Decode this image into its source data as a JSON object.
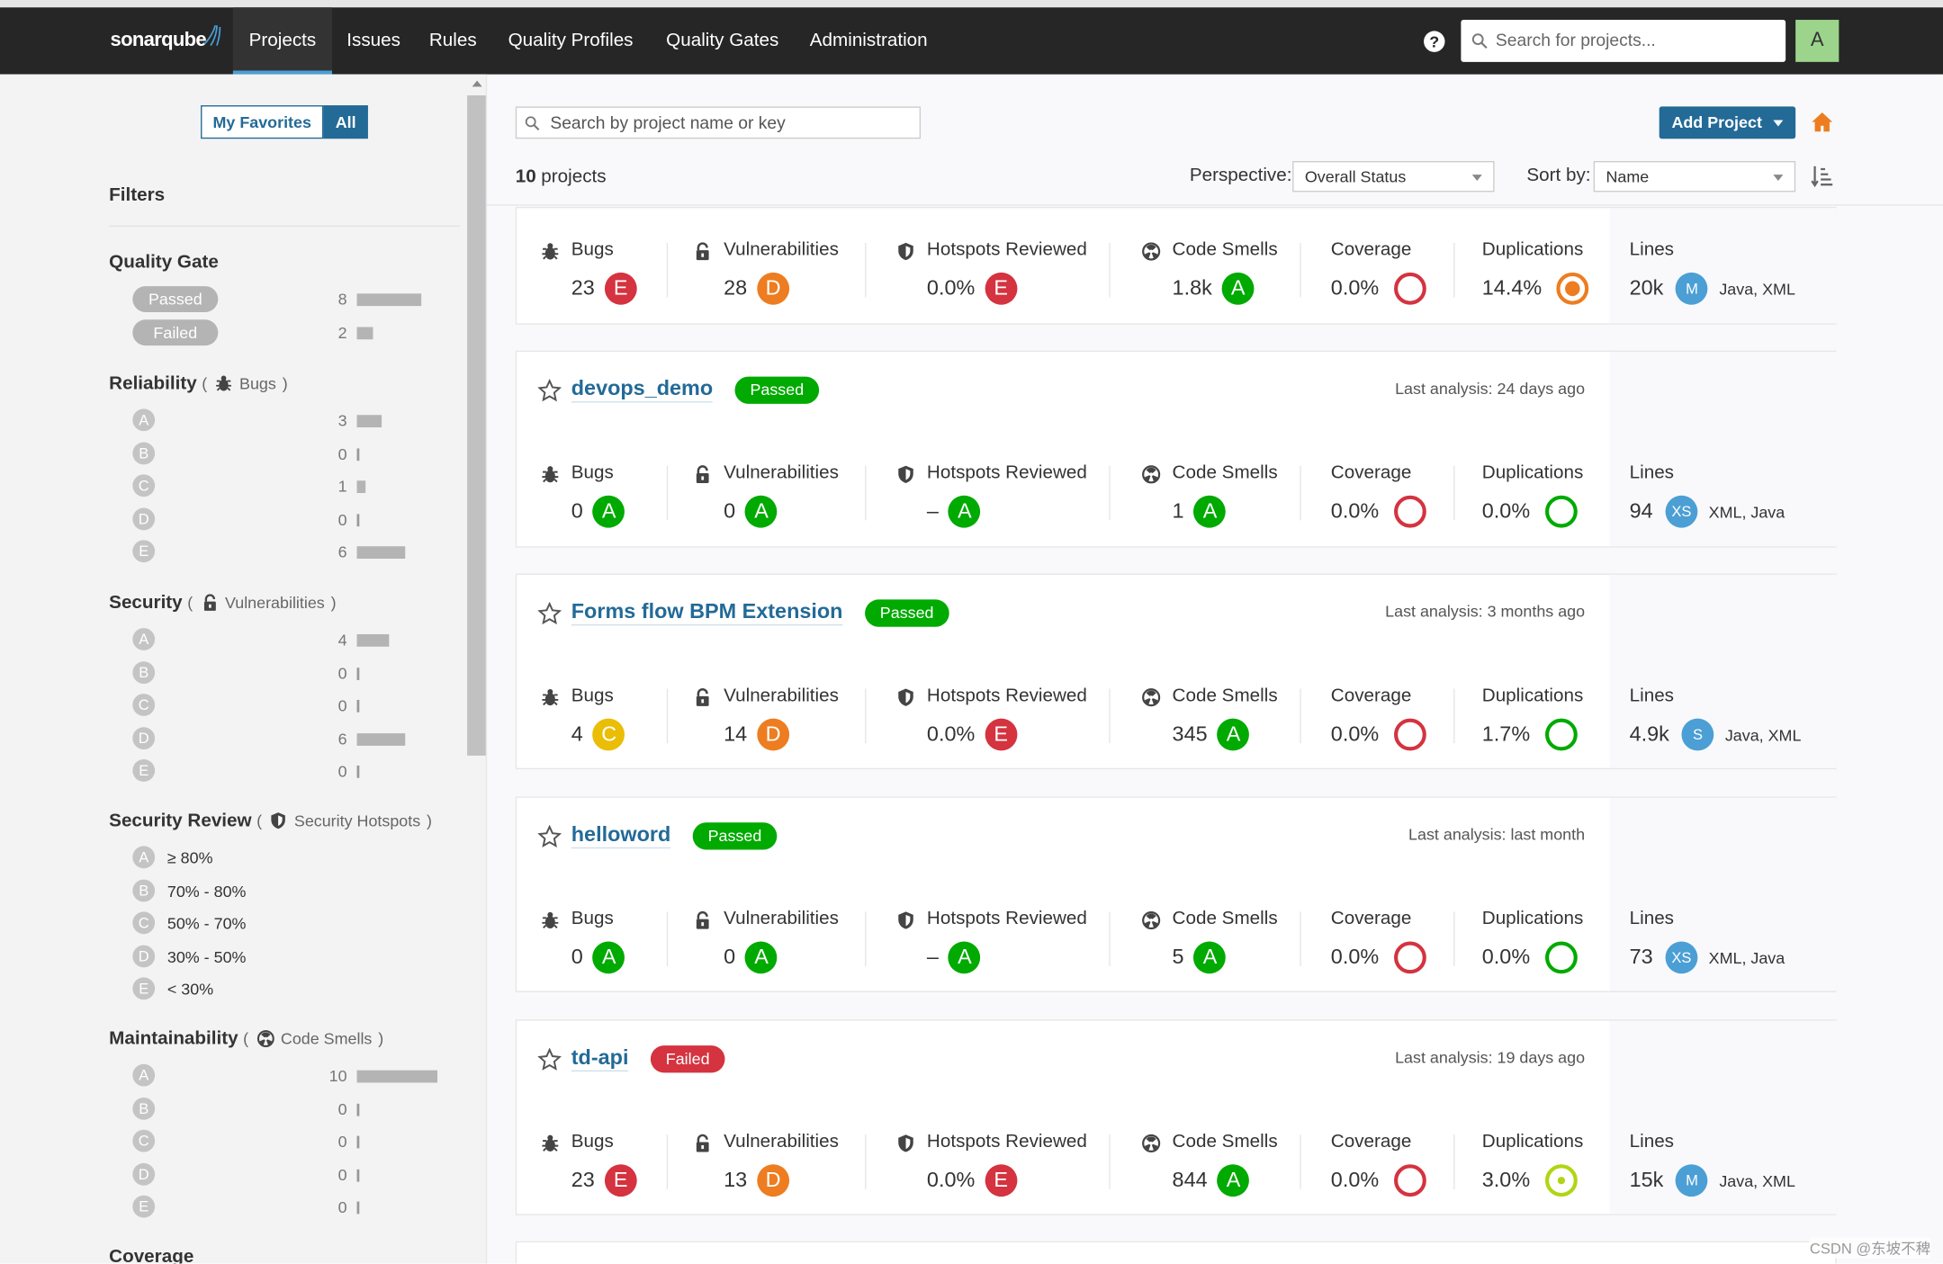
{
  "nav": {
    "logo": "sonarqube",
    "items": [
      "Projects",
      "Issues",
      "Rules",
      "Quality Profiles",
      "Quality Gates",
      "Administration"
    ],
    "help": "?",
    "search": "Search for projects...",
    "avatar": "A"
  },
  "sidebar": {
    "toggle": [
      "My Favorites",
      "All"
    ],
    "title": "Filters",
    "brackets": [
      "(",
      ")"
    ],
    "quality_gate": {
      "title": "Quality Gate",
      "options": [
        {
          "label": "Passed",
          "count": 8
        },
        {
          "label": "Failed",
          "count": 2
        }
      ]
    },
    "groups": [
      {
        "title": "Reliability",
        "qualifier": "Bugs",
        "icon": "bug",
        "options": [
          {
            "label": "A",
            "count": 3
          },
          {
            "label": "B",
            "count": 0
          },
          {
            "label": "C",
            "count": 1
          },
          {
            "label": "D",
            "count": 0
          },
          {
            "label": "E",
            "count": 6
          }
        ]
      },
      {
        "title": "Security",
        "qualifier": "Vulnerabilities",
        "icon": "lock",
        "options": [
          {
            "label": "A",
            "count": 4
          },
          {
            "label": "B",
            "count": 0
          },
          {
            "label": "C",
            "count": 0
          },
          {
            "label": "D",
            "count": 6
          },
          {
            "label": "E",
            "count": 0
          }
        ]
      },
      {
        "title": "Security Review",
        "qualifier": "Security Hotspots",
        "icon": "shield",
        "options": [
          {
            "label": "A",
            "text": "≥ 80%"
          },
          {
            "label": "B",
            "text": "70% - 80%"
          },
          {
            "label": "C",
            "text": "50% - 70%"
          },
          {
            "label": "D",
            "text": "30% - 50%"
          },
          {
            "label": "E",
            "text": "< 30%"
          }
        ]
      },
      {
        "title": "Maintainability",
        "qualifier": "Code Smells",
        "icon": "smell",
        "options": [
          {
            "label": "A",
            "count": 10
          },
          {
            "label": "B",
            "count": 0
          },
          {
            "label": "C",
            "count": 0
          },
          {
            "label": "D",
            "count": 0
          },
          {
            "label": "E",
            "count": 0
          }
        ]
      }
    ],
    "coverage_title": "Coverage"
  },
  "main": {
    "search": "Search by project name or key",
    "add_project": "Add Project",
    "count": "10",
    "count_suffix": "projects",
    "perspective_label": "Perspective:",
    "perspective": "Overall Status",
    "sort_label": "Sort by:",
    "sort": "Name",
    "metric_labels": [
      "Bugs",
      "Vulnerabilities",
      "Hotspots Reviewed",
      "Code Smells",
      "Coverage",
      "Duplications",
      "Lines"
    ],
    "projects": [
      {
        "metrics": [
          {
            "value": "23",
            "rating": "E"
          },
          {
            "value": "28",
            "rating": "D"
          },
          {
            "value": "0.0%",
            "rating": "E"
          },
          {
            "value": "1.8k",
            "rating": "A"
          },
          {
            "value": "0.0%"
          },
          {
            "value": "14.4%",
            "ring": "#ed7d20"
          },
          {
            "value": "20k",
            "size": "M",
            "languages": "Java, XML"
          }
        ]
      },
      {
        "name": "devops_demo",
        "gate": "Passed",
        "analysis": "Last analysis: 24 days ago",
        "metrics": [
          {
            "value": "0",
            "rating": "A"
          },
          {
            "value": "0",
            "rating": "A"
          },
          {
            "value": "–",
            "rating": "A"
          },
          {
            "value": "1",
            "rating": "A"
          },
          {
            "value": "0.0%"
          },
          {
            "value": "0.0%",
            "ring": "#00aa00"
          },
          {
            "value": "94",
            "size": "XS",
            "languages": "XML, Java"
          }
        ]
      },
      {
        "name": "Forms flow BPM Extension",
        "gate": "Passed",
        "analysis": "Last analysis: 3 months ago",
        "metrics": [
          {
            "value": "4",
            "rating": "C"
          },
          {
            "value": "14",
            "rating": "D"
          },
          {
            "value": "0.0%",
            "rating": "E"
          },
          {
            "value": "345",
            "rating": "A"
          },
          {
            "value": "0.0%"
          },
          {
            "value": "1.7%",
            "ring": "#00aa00"
          },
          {
            "value": "4.9k",
            "size": "S",
            "languages": "Java, XML"
          }
        ]
      },
      {
        "name": "helloword",
        "gate": "Passed",
        "analysis": "Last analysis: last month",
        "metrics": [
          {
            "value": "0",
            "rating": "A"
          },
          {
            "value": "0",
            "rating": "A"
          },
          {
            "value": "–",
            "rating": "A"
          },
          {
            "value": "5",
            "rating": "A"
          },
          {
            "value": "0.0%"
          },
          {
            "value": "0.0%",
            "ring": "#00aa00"
          },
          {
            "value": "73",
            "size": "XS",
            "languages": "XML, Java"
          }
        ]
      },
      {
        "name": "td-api",
        "gate": "Failed",
        "analysis": "Last analysis: 19 days ago",
        "metrics": [
          {
            "value": "23",
            "rating": "E"
          },
          {
            "value": "13",
            "rating": "D"
          },
          {
            "value": "0.0%",
            "rating": "E"
          },
          {
            "value": "844",
            "rating": "A"
          },
          {
            "value": "0.0%"
          },
          {
            "value": "3.0%",
            "ring": "#b0d513"
          },
          {
            "value": "15k",
            "size": "M",
            "languages": "Java, XML"
          }
        ]
      }
    ]
  },
  "watermark": "CSDN @东坡不稗"
}
